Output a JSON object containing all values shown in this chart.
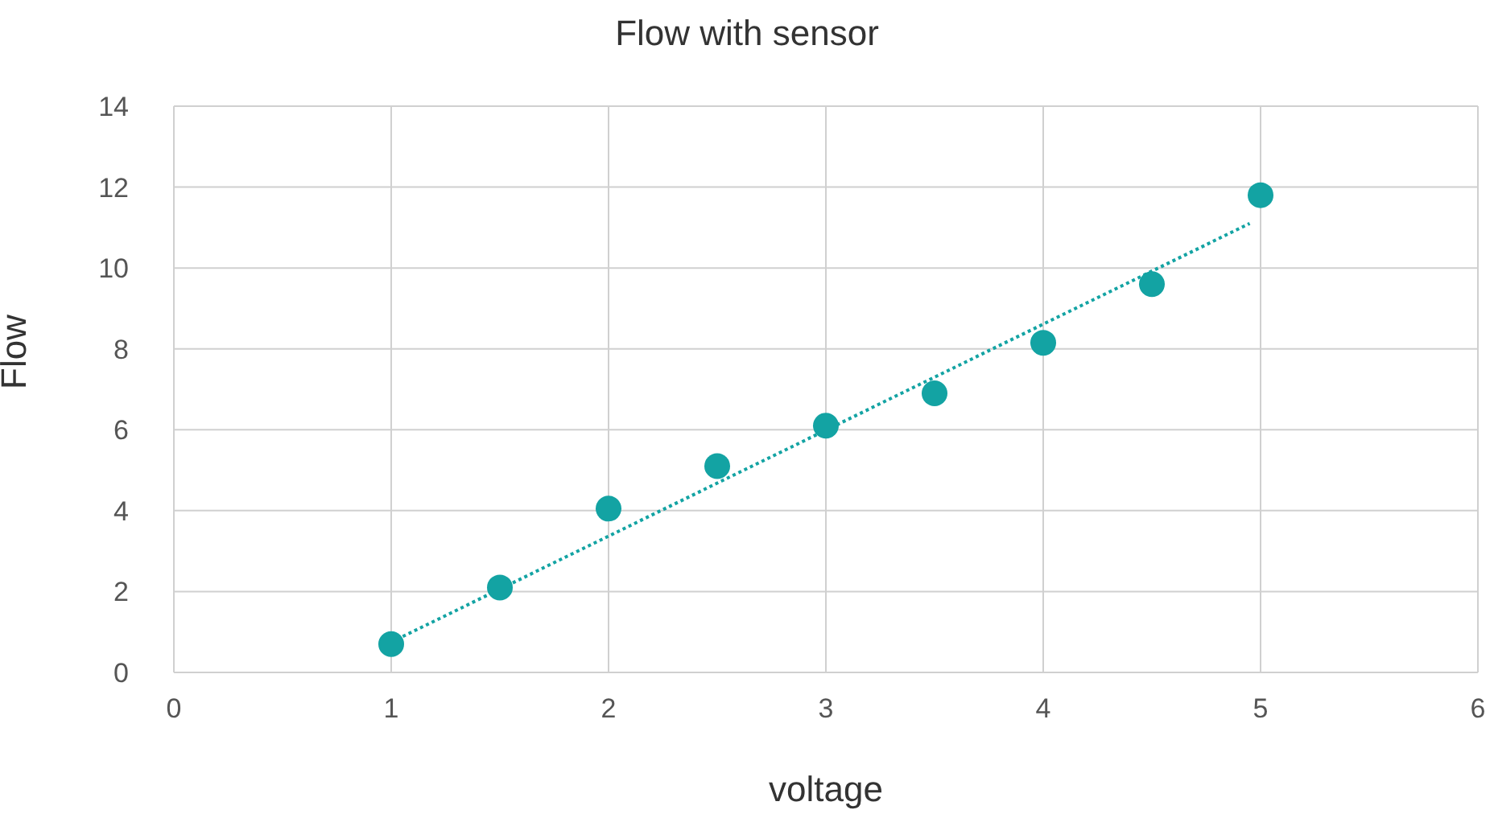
{
  "chart_data": {
    "type": "scatter",
    "title": "Flow with sensor",
    "xlabel": "voltage",
    "ylabel": "Flow",
    "xlim": [
      0,
      6
    ],
    "xticks": [
      0,
      1,
      2,
      3,
      4,
      5,
      6
    ],
    "ylim": [
      0,
      14
    ],
    "yticks": [
      0,
      2,
      4,
      6,
      8,
      10,
      12,
      14
    ],
    "grid": true,
    "legend": false,
    "series": [
      {
        "color": "#13a3a3",
        "marker": "circle",
        "x": [
          1,
          1.5,
          2,
          2.5,
          3,
          3.5,
          4,
          4.5,
          5
        ],
        "values": [
          0.7,
          2.1,
          4.05,
          5.1,
          6.1,
          6.9,
          8.15,
          9.6,
          11.8
        ]
      },
      {
        "type": "line",
        "color": "#13a3a3",
        "marker": "none",
        "line_style": "dotted",
        "x": [
          1,
          4.95
        ],
        "values": [
          0.75,
          11.1
        ]
      }
    ]
  }
}
